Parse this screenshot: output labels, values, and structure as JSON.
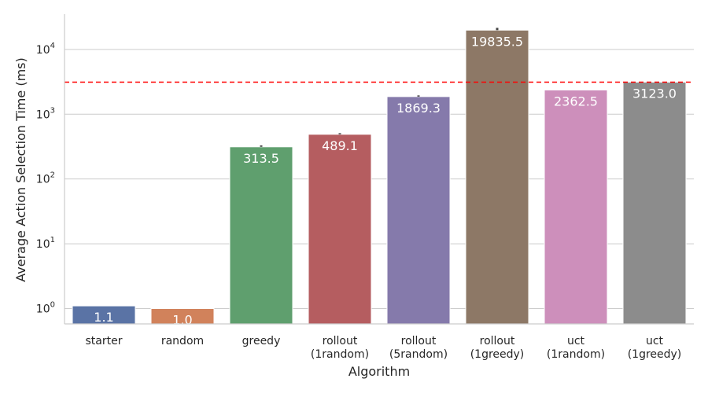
{
  "chart_data": {
    "type": "bar",
    "title": "",
    "xlabel": "Algorithm",
    "ylabel": "Average Action Selection Time (ms)",
    "yscale": "log",
    "ylim": [
      0.58,
      35000
    ],
    "yticks": [
      1,
      10,
      100,
      1000,
      10000
    ],
    "ytick_labels": [
      {
        "base": "10",
        "exp": "0"
      },
      {
        "base": "10",
        "exp": "1"
      },
      {
        "base": "10",
        "exp": "2"
      },
      {
        "base": "10",
        "exp": "3"
      },
      {
        "base": "10",
        "exp": "4"
      }
    ],
    "grid": "horizontal",
    "categories": [
      [
        "starter"
      ],
      [
        "random"
      ],
      [
        "greedy"
      ],
      [
        "rollout",
        "(1random)"
      ],
      [
        "rollout",
        "(5random)"
      ],
      [
        "rollout",
        "(1greedy)"
      ],
      [
        "uct",
        "(1random)"
      ],
      [
        "uct",
        "(1greedy)"
      ]
    ],
    "values": [
      1.1,
      1.0,
      313.5,
      489.1,
      1869.3,
      19835.5,
      2362.5,
      3123.0
    ],
    "value_labels": [
      "1.1",
      "1.0",
      "313.5",
      "489.1",
      "1869.3",
      "19835.5",
      "2362.5",
      "3123.0"
    ],
    "error_tops": [
      null,
      1.0,
      330,
      510,
      1950,
      21500,
      null,
      null
    ],
    "colors": [
      "#5a73a5",
      "#d1825b",
      "#5f9f6e",
      "#b55d60",
      "#857aab",
      "#8d7866",
      "#cd8fbb",
      "#8c8c8c"
    ],
    "reference_line": {
      "value": 3123.0,
      "color": "#ff0000",
      "style": "dashed"
    }
  }
}
